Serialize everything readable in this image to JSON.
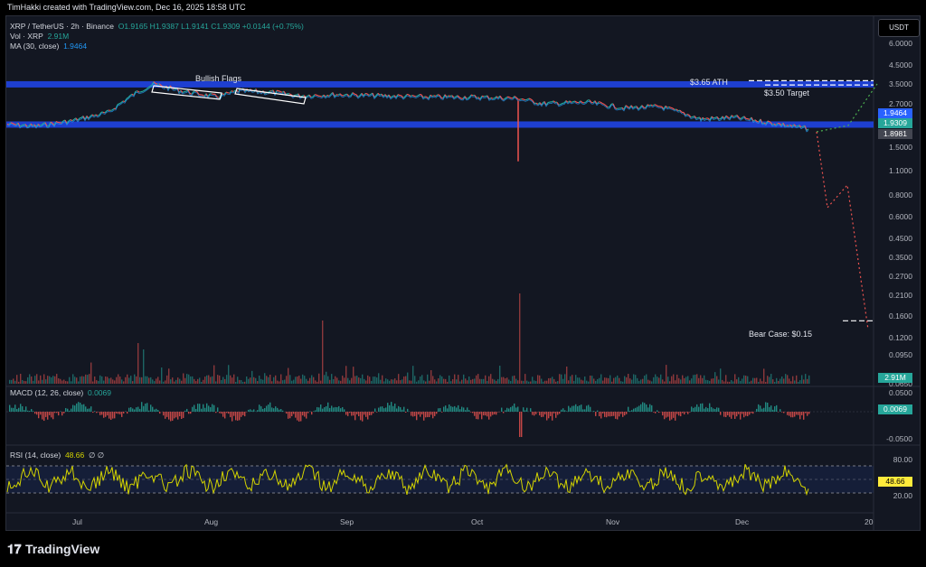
{
  "header": {
    "credit": "TimHakki created with TradingView.com, Dec 16, 2025 18:58 UTC"
  },
  "legend": {
    "symbol": "XRP / TetherUS · 2h · Binance",
    "ohlc": "O1.9165 H1.9387 L1.9141 C1.9309 +0.0144 (+0.75%)",
    "vol_label": "Vol · XRP",
    "vol_value": "2.91M",
    "ma_label": "MA (30, close)",
    "ma_value": "1.9464",
    "macd_label": "MACD (12, 26, close)",
    "macd_value": "0.0069",
    "rsi_label": "RSI (14, close)",
    "rsi_value": "48.66",
    "rsi_extra": "∅  ∅"
  },
  "currency_button": "USDT",
  "annotations": {
    "bullish_flags": "Bullish Flags",
    "ath": "$3.65 ATH",
    "target": "$3.50 Target",
    "bear_case": "Bear Case: $0.15"
  },
  "price_axis": [
    "6.0000",
    "4.5000",
    "3.5000",
    "2.7000",
    "1.5000",
    "1.1000",
    "0.8000",
    "0.6000",
    "0.4500",
    "0.3500",
    "0.2700",
    "0.2100",
    "0.1600",
    "0.1200",
    "0.0950",
    "0.0650"
  ],
  "price_tags": {
    "ma": "1.9464",
    "close": "1.9309",
    "other": "1.8981",
    "vol": "2.91M"
  },
  "macd_axis": [
    "0.0500",
    "-0.0500"
  ],
  "macd_tag": "0.0069",
  "rsi_axis": [
    "80.00",
    "20.00"
  ],
  "rsi_tag": "48.66",
  "time_axis": [
    "Jul",
    "Aug",
    "Sep",
    "Oct",
    "Nov",
    "Dec",
    "20"
  ],
  "colors": {
    "up": "#26a69a",
    "down": "#ef5350",
    "band": "#1e3fd0",
    "rsi": "#d4d400",
    "ma": "#2196f3"
  },
  "footer": {
    "brand": "TradingView"
  },
  "chart_data": [
    {
      "type": "line",
      "title": "XRP / TetherUS · 2h · Binance",
      "y_scale": "log",
      "ylim": [
        0.065,
        6.0
      ],
      "x": [
        "Jul",
        "Aug",
        "Sep",
        "Oct",
        "Nov",
        "Dec"
      ],
      "series": [
        {
          "name": "XRP / TetherUS",
          "values": [
            2.2,
            3.4,
            2.9,
            2.8,
            2.3,
            2.05
          ]
        }
      ],
      "levels": {
        "ath": 3.65,
        "target": 3.5,
        "bear_case": 0.15
      }
    },
    {
      "type": "bar",
      "title": "Vol · XRP",
      "last": "2.91M"
    },
    {
      "type": "bar",
      "title": "MACD (12, 26, close)",
      "last": 0.0069
    },
    {
      "type": "line",
      "title": "RSI (14, close)",
      "last": 48.66,
      "bands": [
        80,
        20
      ]
    }
  ]
}
